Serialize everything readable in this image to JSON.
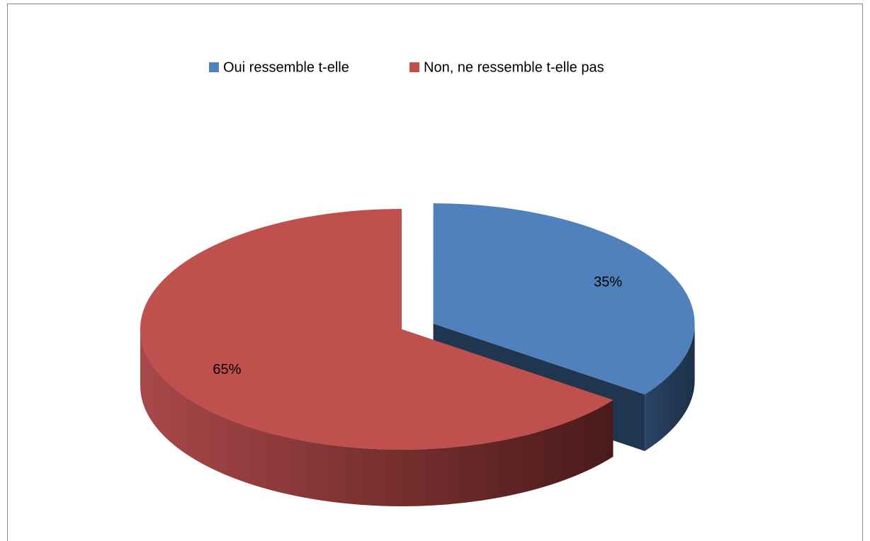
{
  "chart_data": {
    "type": "pie",
    "categories": [
      "Oui ressemble t-elle",
      "Non, ne ressemble t-elle pas"
    ],
    "values": [
      35,
      65
    ],
    "value_labels": [
      "35%",
      "65%"
    ],
    "colors": [
      "#4f81bd",
      "#c0504d"
    ],
    "legend": "top"
  }
}
